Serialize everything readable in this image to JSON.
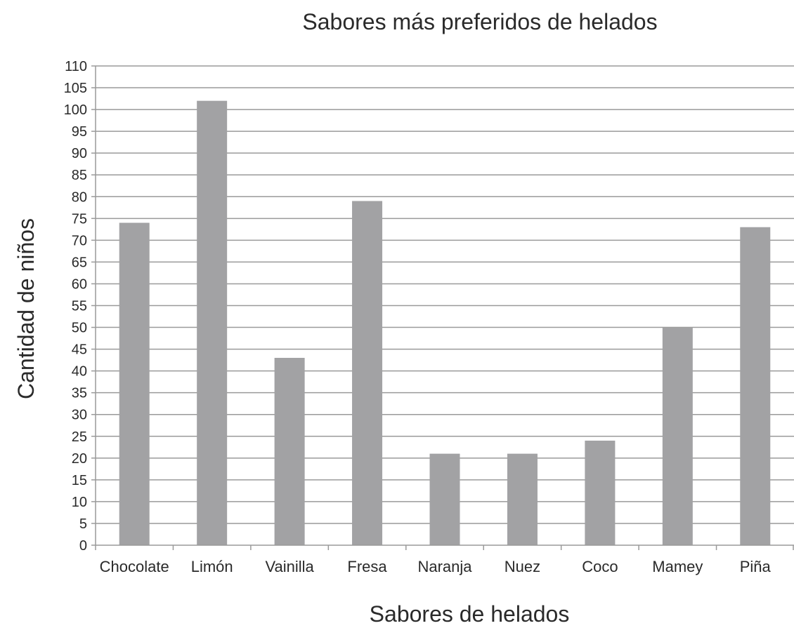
{
  "chart_data": {
    "type": "bar",
    "title": "Sabores más preferidos de helados",
    "xlabel": "Sabores de helados",
    "ylabel": "Cantidad de niños",
    "categories": [
      "Chocolate",
      "Limón",
      "Vainilla",
      "Fresa",
      "Naranja",
      "Nuez",
      "Coco",
      "Mamey",
      "Piña"
    ],
    "values": [
      74,
      102,
      43,
      79,
      21,
      21,
      24,
      50,
      73
    ],
    "ylim": [
      0,
      110
    ],
    "yticks": [
      0,
      5,
      10,
      15,
      20,
      25,
      30,
      35,
      40,
      45,
      50,
      55,
      60,
      65,
      70,
      75,
      80,
      85,
      90,
      95,
      100,
      105,
      110
    ],
    "grid": true,
    "legend": "none",
    "colors": {
      "bar": "#a2a2a4",
      "grid": "#9a9a9a"
    }
  }
}
